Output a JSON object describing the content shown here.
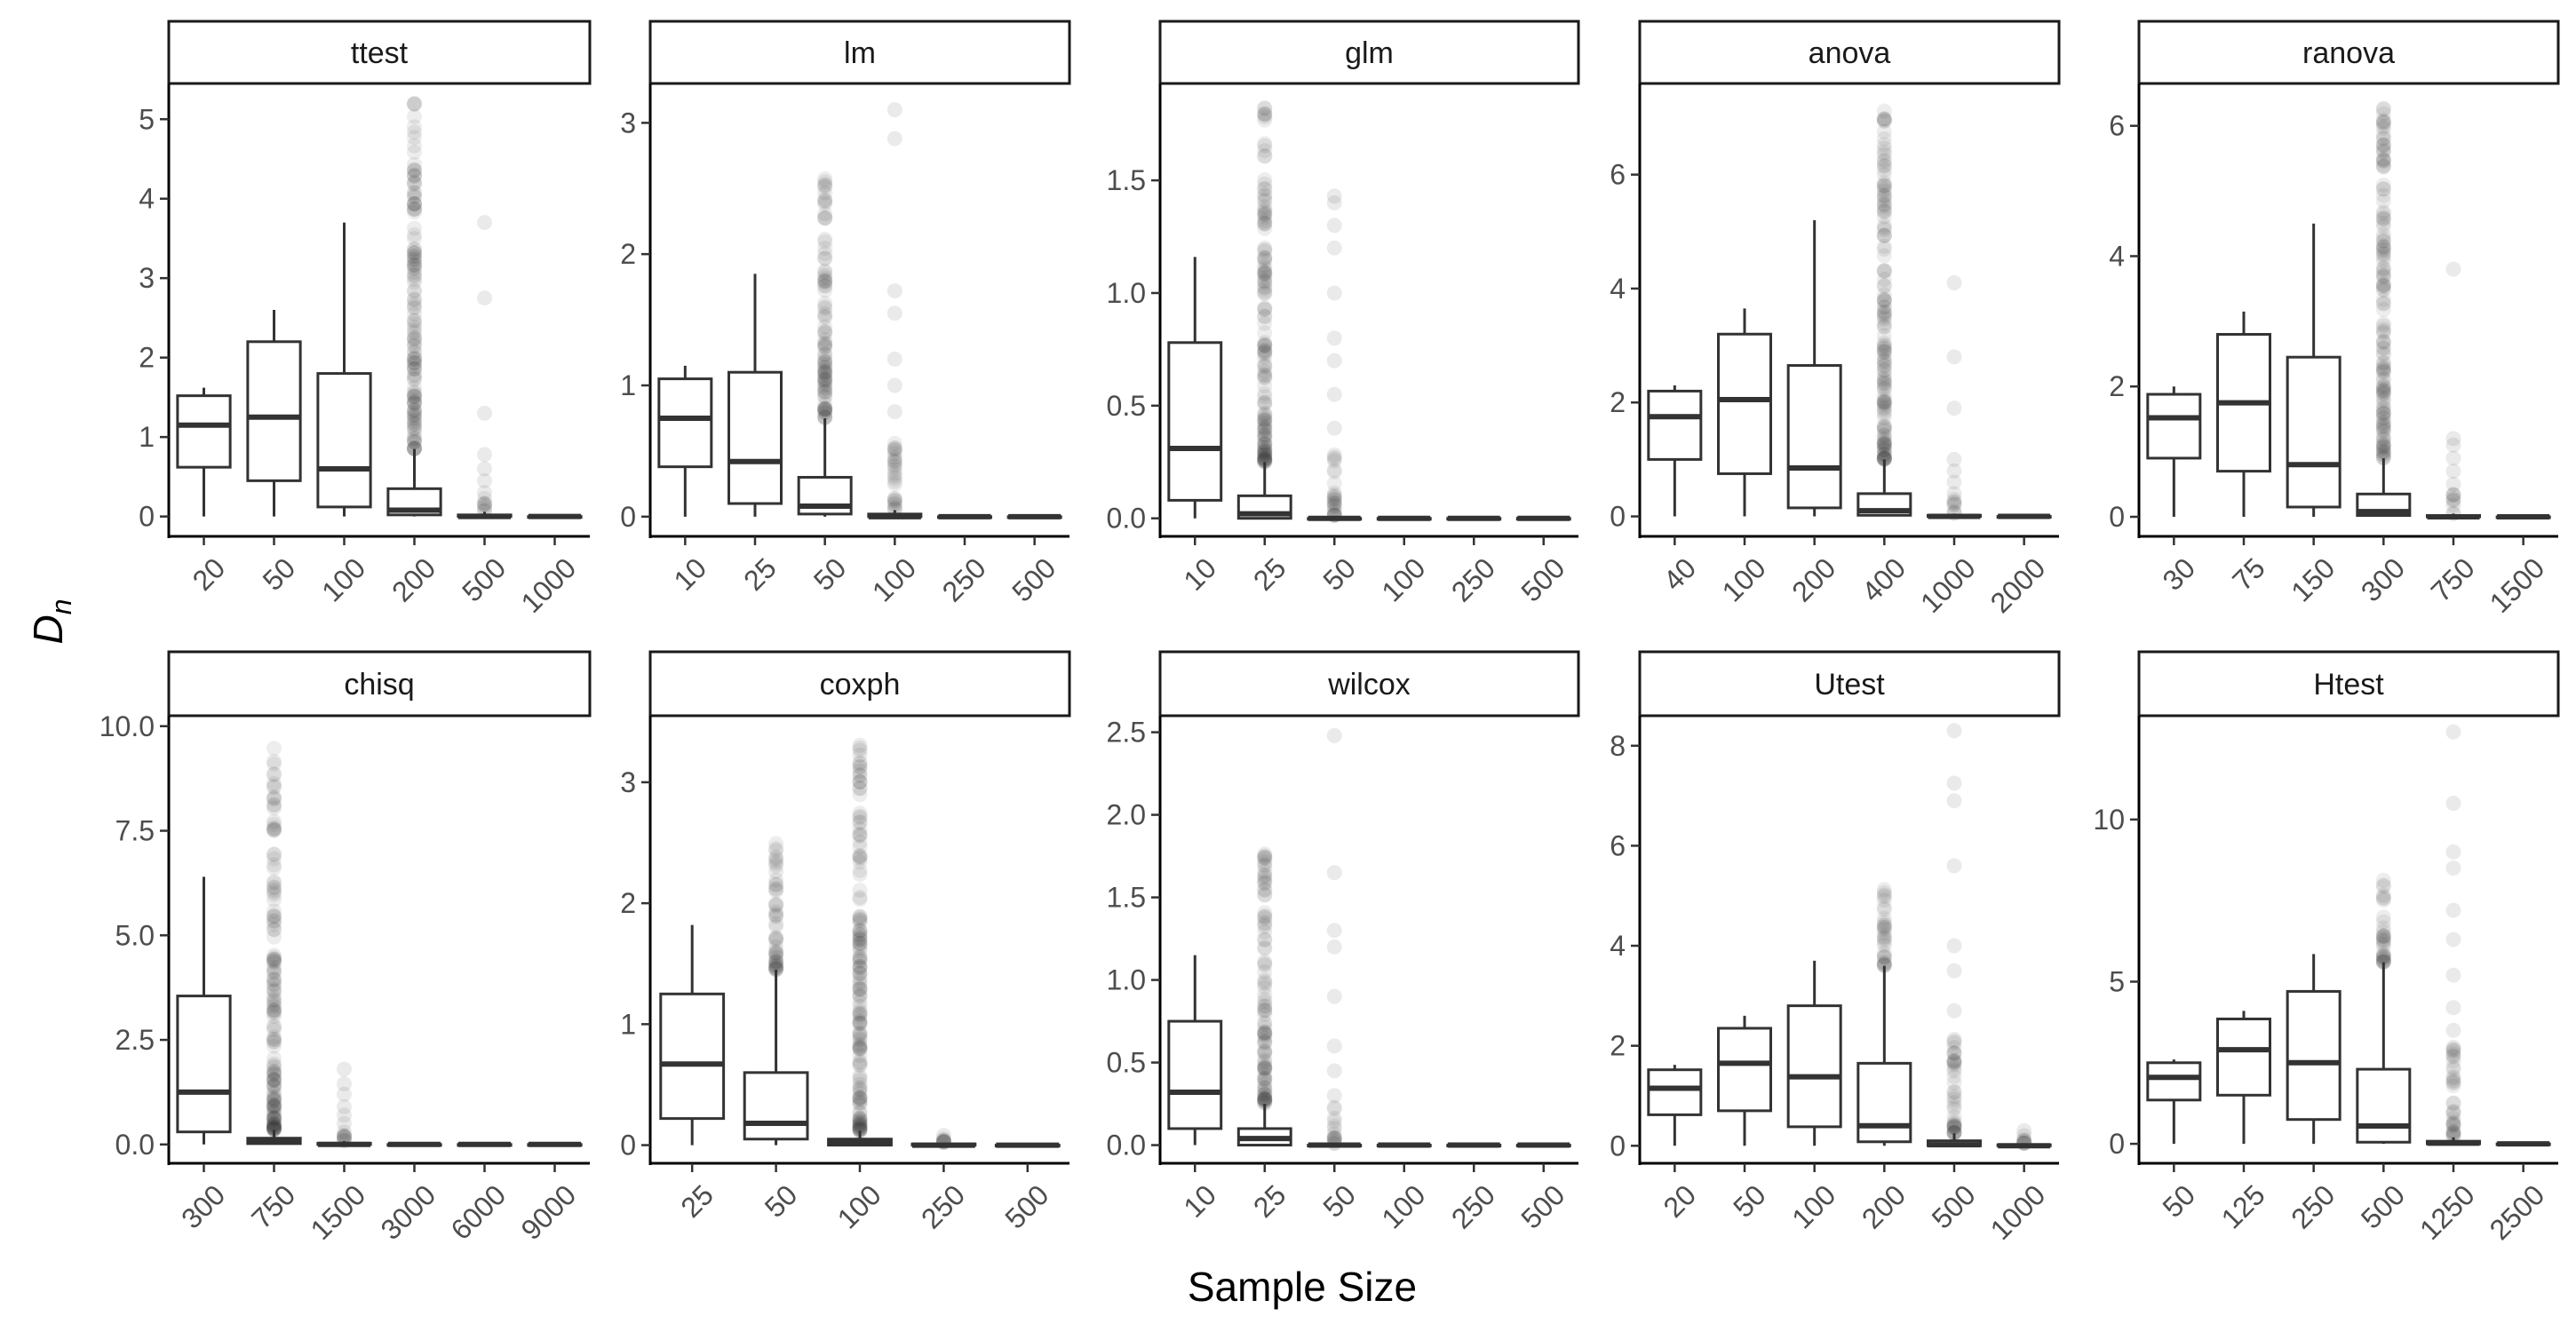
{
  "chart_data": {
    "type": "box",
    "layout": "facet grid, 2 rows x 5 columns, free scales",
    "xlabel": "Sample Size",
    "ylabel": "D",
    "ylabel_subscript": "n",
    "colors": {
      "box": "#333333",
      "outlier": "#333333",
      "axis": "#000000",
      "strip_fill": "#ffffff"
    },
    "panels": [
      {
        "title": "ttest",
        "categories": [
          "20",
          "50",
          "100",
          "200",
          "500",
          "1000"
        ],
        "ylim": [
          -0.25,
          5.45
        ],
        "yticks": [
          0,
          1,
          2,
          3,
          4,
          5
        ],
        "ytick_labels": [
          "0",
          "1",
          "2",
          "3",
          "4",
          "5"
        ],
        "boxes": [
          {
            "q1": 0.62,
            "median": 1.15,
            "q3": 1.52,
            "lower": 0.0,
            "upper": 1.62,
            "outliers": []
          },
          {
            "q1": 0.45,
            "median": 1.25,
            "q3": 2.2,
            "lower": 0.0,
            "upper": 2.6,
            "outliers": []
          },
          {
            "q1": 0.12,
            "median": 0.6,
            "q3": 1.8,
            "lower": 0.0,
            "upper": 3.7,
            "outliers": []
          },
          {
            "q1": 0.02,
            "median": 0.08,
            "q3": 0.35,
            "lower": 0.0,
            "upper": 0.85,
            "outliers": [],
            "outlier_range": [
              0.85,
              5.22
            ]
          },
          {
            "q1": 0.0,
            "median": 0.0,
            "q3": 0.02,
            "lower": 0.0,
            "upper": 0.06,
            "outliers": [
              0.3,
              0.45,
              0.6,
              0.78,
              1.3,
              2.75,
              3.7
            ],
            "outlier_range": [
              0.06,
              0.25
            ]
          },
          {
            "q1": 0.0,
            "median": 0.0,
            "q3": 0.0,
            "lower": 0.0,
            "upper": 0.01,
            "outliers": []
          }
        ]
      },
      {
        "title": "lm",
        "categories": [
          "10",
          "25",
          "50",
          "100",
          "250",
          "500"
        ],
        "ylim": [
          -0.15,
          3.3
        ],
        "yticks": [
          0,
          1,
          2,
          3
        ],
        "ytick_labels": [
          "0",
          "1",
          "2",
          "3"
        ],
        "boxes": [
          {
            "q1": 0.38,
            "median": 0.75,
            "q3": 1.05,
            "lower": 0.0,
            "upper": 1.15,
            "outliers": []
          },
          {
            "q1": 0.1,
            "median": 0.42,
            "q3": 1.1,
            "lower": 0.0,
            "upper": 1.85,
            "outliers": []
          },
          {
            "q1": 0.02,
            "median": 0.08,
            "q3": 0.3,
            "lower": 0.0,
            "upper": 0.75,
            "outliers": [],
            "outlier_range": [
              0.75,
              2.6
            ]
          },
          {
            "q1": 0.0,
            "median": 0.0,
            "q3": 0.02,
            "lower": 0.0,
            "upper": 0.05,
            "outliers": [
              0.8,
              1.0,
              1.2,
              1.55,
              1.72,
              2.88,
              3.1
            ],
            "outlier_range": [
              0.05,
              0.6
            ]
          },
          {
            "q1": 0.0,
            "median": 0.0,
            "q3": 0.0,
            "lower": 0.0,
            "upper": 0.01,
            "outliers": []
          },
          {
            "q1": 0.0,
            "median": 0.0,
            "q3": 0.0,
            "lower": 0.0,
            "upper": 0.01,
            "outliers": []
          }
        ]
      },
      {
        "title": "glm",
        "categories": [
          "10",
          "25",
          "50",
          "100",
          "250",
          "500"
        ],
        "ylim": [
          -0.08,
          1.93
        ],
        "yticks": [
          0,
          0.5,
          1.0,
          1.5
        ],
        "ytick_labels": [
          "0.0",
          "0.5",
          "1.0",
          "1.5"
        ],
        "boxes": [
          {
            "q1": 0.08,
            "median": 0.31,
            "q3": 0.78,
            "lower": 0.0,
            "upper": 1.16,
            "outliers": []
          },
          {
            "q1": 0.0,
            "median": 0.02,
            "q3": 0.1,
            "lower": 0.0,
            "upper": 0.25,
            "outliers": [],
            "outlier_range": [
              0.25,
              1.84
            ]
          },
          {
            "q1": 0.0,
            "median": 0.0,
            "q3": 0.0,
            "lower": 0.0,
            "upper": 0.01,
            "outliers": [
              0.4,
              0.55,
              0.7,
              0.8,
              1.0,
              1.2,
              1.3,
              1.4,
              1.43
            ],
            "outlier_range": [
              0.01,
              0.3
            ]
          },
          {
            "q1": 0.0,
            "median": 0.0,
            "q3": 0.0,
            "lower": 0.0,
            "upper": 0.01,
            "outliers": []
          },
          {
            "q1": 0.0,
            "median": 0.0,
            "q3": 0.0,
            "lower": 0.0,
            "upper": 0.01,
            "outliers": []
          },
          {
            "q1": 0.0,
            "median": 0.0,
            "q3": 0.0,
            "lower": 0.0,
            "upper": 0.01,
            "outliers": []
          }
        ]
      },
      {
        "title": "anova",
        "categories": [
          "40",
          "100",
          "200",
          "400",
          "1000",
          "2000"
        ],
        "ylim": [
          -0.35,
          7.6
        ],
        "yticks": [
          0,
          2,
          4,
          6
        ],
        "ytick_labels": [
          "0",
          "2",
          "4",
          "6"
        ],
        "boxes": [
          {
            "q1": 1.0,
            "median": 1.75,
            "q3": 2.2,
            "lower": 0.0,
            "upper": 2.3,
            "outliers": []
          },
          {
            "q1": 0.75,
            "median": 2.05,
            "q3": 3.2,
            "lower": 0.0,
            "upper": 3.65,
            "outliers": []
          },
          {
            "q1": 0.15,
            "median": 0.85,
            "q3": 2.65,
            "lower": 0.0,
            "upper": 5.2,
            "outliers": []
          },
          {
            "q1": 0.02,
            "median": 0.1,
            "q3": 0.4,
            "lower": 0.0,
            "upper": 1.0,
            "outliers": [],
            "outlier_range": [
              1.0,
              7.35
            ]
          },
          {
            "q1": 0.0,
            "median": 0.0,
            "q3": 0.02,
            "lower": 0.0,
            "upper": 0.05,
            "outliers": [
              0.4,
              0.6,
              0.8,
              1.0,
              1.9,
              2.8,
              4.1
            ],
            "outlier_range": [
              0.05,
              0.3
            ]
          },
          {
            "q1": 0.0,
            "median": 0.0,
            "q3": 0.0,
            "lower": 0.0,
            "upper": 0.01,
            "outliers": []
          }
        ]
      },
      {
        "title": "ranova",
        "categories": [
          "30",
          "75",
          "150",
          "300",
          "750",
          "1500"
        ],
        "ylim": [
          -0.3,
          6.65
        ],
        "yticks": [
          0,
          2,
          4,
          6
        ],
        "ytick_labels": [
          "0",
          "2",
          "4",
          "6"
        ],
        "boxes": [
          {
            "q1": 0.9,
            "median": 1.52,
            "q3": 1.88,
            "lower": 0.0,
            "upper": 2.0,
            "outliers": []
          },
          {
            "q1": 0.7,
            "median": 1.75,
            "q3": 2.8,
            "lower": 0.0,
            "upper": 3.15,
            "outliers": []
          },
          {
            "q1": 0.15,
            "median": 0.8,
            "q3": 2.45,
            "lower": 0.0,
            "upper": 4.5,
            "outliers": []
          },
          {
            "q1": 0.02,
            "median": 0.08,
            "q3": 0.35,
            "lower": 0.0,
            "upper": 0.9,
            "outliers": [],
            "outlier_range": [
              0.9,
              6.35
            ]
          },
          {
            "q1": 0.0,
            "median": 0.0,
            "q3": 0.02,
            "lower": 0.0,
            "upper": 0.05,
            "outliers": [
              0.5,
              0.7,
              0.9,
              1.1,
              1.2,
              3.8
            ],
            "outlier_range": [
              0.05,
              0.4
            ]
          },
          {
            "q1": 0.0,
            "median": 0.0,
            "q3": 0.0,
            "lower": 0.0,
            "upper": 0.01,
            "outliers": []
          }
        ]
      },
      {
        "title": "chisq",
        "categories": [
          "300",
          "750",
          "1500",
          "3000",
          "6000",
          "9000"
        ],
        "ylim": [
          -0.45,
          10.25
        ],
        "yticks": [
          0,
          2.5,
          5.0,
          7.5,
          10.0
        ],
        "ytick_labels": [
          "0.0",
          "2.5",
          "5.0",
          "7.5",
          "10.0"
        ],
        "boxes": [
          {
            "q1": 0.3,
            "median": 1.25,
            "q3": 3.55,
            "lower": 0.0,
            "upper": 6.4,
            "outliers": []
          },
          {
            "q1": 0.02,
            "median": 0.08,
            "q3": 0.15,
            "lower": 0.0,
            "upper": 0.35,
            "outliers": [],
            "outlier_range": [
              0.35,
              9.8
            ]
          },
          {
            "q1": 0.0,
            "median": 0.0,
            "q3": 0.03,
            "lower": 0.0,
            "upper": 0.08,
            "outliers": [
              0.3,
              0.5,
              0.7,
              0.9,
              1.2,
              1.45,
              1.8
            ],
            "outlier_range": [
              0.08,
              0.3
            ]
          },
          {
            "q1": 0.0,
            "median": 0.0,
            "q3": 0.0,
            "lower": 0.0,
            "upper": 0.01,
            "outliers": []
          },
          {
            "q1": 0.0,
            "median": 0.0,
            "q3": 0.0,
            "lower": 0.0,
            "upper": 0.01,
            "outliers": []
          },
          {
            "q1": 0.0,
            "median": 0.0,
            "q3": 0.0,
            "lower": 0.0,
            "upper": 0.01,
            "outliers": []
          }
        ]
      },
      {
        "title": "coxph",
        "categories": [
          "25",
          "50",
          "100",
          "250",
          "500"
        ],
        "ylim": [
          -0.15,
          3.55
        ],
        "yticks": [
          0,
          1,
          2,
          3
        ],
        "ytick_labels": [
          "0",
          "1",
          "2",
          "3"
        ],
        "boxes": [
          {
            "q1": 0.22,
            "median": 0.67,
            "q3": 1.25,
            "lower": 0.0,
            "upper": 1.82,
            "outliers": []
          },
          {
            "q1": 0.05,
            "median": 0.18,
            "q3": 0.6,
            "lower": 0.0,
            "upper": 1.45,
            "outliers": [],
            "outlier_range": [
              1.45,
              2.5
            ]
          },
          {
            "q1": 0.0,
            "median": 0.02,
            "q3": 0.05,
            "lower": 0.0,
            "upper": 0.12,
            "outliers": [],
            "outlier_range": [
              0.12,
              3.45
            ]
          },
          {
            "q1": 0.0,
            "median": 0.0,
            "q3": 0.01,
            "lower": 0.0,
            "upper": 0.02,
            "outliers": [
              0.05,
              0.08
            ],
            "outlier_range": [
              0.02,
              0.04
            ]
          },
          {
            "q1": 0.0,
            "median": 0.0,
            "q3": 0.0,
            "lower": 0.0,
            "upper": 0.01,
            "outliers": []
          }
        ]
      },
      {
        "title": "wilcox",
        "categories": [
          "10",
          "25",
          "50",
          "100",
          "250",
          "500"
        ],
        "ylim": [
          -0.11,
          2.6
        ],
        "yticks": [
          0,
          0.5,
          1.0,
          1.5,
          2.0,
          2.5
        ],
        "ytick_labels": [
          "0.0",
          "0.5",
          "1.0",
          "1.5",
          "2.0",
          "2.5"
        ],
        "boxes": [
          {
            "q1": 0.1,
            "median": 0.32,
            "q3": 0.75,
            "lower": 0.0,
            "upper": 1.15,
            "outliers": []
          },
          {
            "q1": 0.0,
            "median": 0.04,
            "q3": 0.1,
            "lower": 0.0,
            "upper": 0.25,
            "outliers": [],
            "outlier_range": [
              0.25,
              1.84
            ]
          },
          {
            "q1": 0.0,
            "median": 0.0,
            "q3": 0.0,
            "lower": 0.0,
            "upper": 0.01,
            "outliers": [
              0.3,
              0.45,
              0.6,
              0.9,
              1.2,
              1.3,
              1.65,
              2.48
            ],
            "outlier_range": [
              0.01,
              0.25
            ]
          },
          {
            "q1": 0.0,
            "median": 0.0,
            "q3": 0.0,
            "lower": 0.0,
            "upper": 0.01,
            "outliers": []
          },
          {
            "q1": 0.0,
            "median": 0.0,
            "q3": 0.0,
            "lower": 0.0,
            "upper": 0.01,
            "outliers": []
          },
          {
            "q1": 0.0,
            "median": 0.0,
            "q3": 0.0,
            "lower": 0.0,
            "upper": 0.01,
            "outliers": []
          }
        ]
      },
      {
        "title": "Utest",
        "categories": [
          "20",
          "50",
          "100",
          "200",
          "500",
          "1000"
        ],
        "ylim": [
          -0.35,
          8.6
        ],
        "yticks": [
          0,
          2,
          4,
          6,
          8
        ],
        "ytick_labels": [
          "0",
          "2",
          "4",
          "6",
          "8"
        ],
        "boxes": [
          {
            "q1": 0.62,
            "median": 1.15,
            "q3": 1.52,
            "lower": 0.0,
            "upper": 1.62,
            "outliers": []
          },
          {
            "q1": 0.7,
            "median": 1.65,
            "q3": 2.35,
            "lower": 0.0,
            "upper": 2.6,
            "outliers": []
          },
          {
            "q1": 0.38,
            "median": 1.38,
            "q3": 2.8,
            "lower": 0.0,
            "upper": 3.7,
            "outliers": []
          },
          {
            "q1": 0.08,
            "median": 0.4,
            "q3": 1.65,
            "lower": 0.0,
            "upper": 3.6,
            "outliers": [],
            "outlier_range": [
              3.6,
              5.2
            ]
          },
          {
            "q1": 0.0,
            "median": 0.02,
            "q3": 0.1,
            "lower": 0.0,
            "upper": 0.25,
            "outliers": [
              2.7,
              3.5,
              4.0,
              5.6,
              6.9,
              7.25,
              8.3
            ],
            "outlier_range": [
              0.25,
              2.4
            ]
          },
          {
            "q1": 0.0,
            "median": 0.0,
            "q3": 0.02,
            "lower": 0.0,
            "upper": 0.05,
            "outliers": [
              0.2,
              0.3
            ],
            "outlier_range": [
              0.05,
              0.15
            ]
          }
        ]
      },
      {
        "title": "Htest",
        "categories": [
          "50",
          "125",
          "250",
          "500",
          "1250",
          "2500"
        ],
        "ylim": [
          -0.6,
          13.2
        ],
        "yticks": [
          0,
          5,
          10
        ],
        "ytick_labels": [
          "0",
          "5",
          "10"
        ],
        "boxes": [
          {
            "q1": 1.35,
            "median": 2.05,
            "q3": 2.5,
            "lower": 0.0,
            "upper": 2.6,
            "outliers": []
          },
          {
            "q1": 1.5,
            "median": 2.9,
            "q3": 3.85,
            "lower": 0.0,
            "upper": 4.1,
            "outliers": []
          },
          {
            "q1": 0.75,
            "median": 2.5,
            "q3": 4.7,
            "lower": 0.0,
            "upper": 5.85,
            "outliers": []
          },
          {
            "q1": 0.05,
            "median": 0.55,
            "q3": 2.3,
            "lower": 0.0,
            "upper": 5.6,
            "outliers": [],
            "outlier_range": [
              5.6,
              8.2
            ]
          },
          {
            "q1": 0.0,
            "median": 0.02,
            "q3": 0.08,
            "lower": 0.0,
            "upper": 0.2,
            "outliers": [
              3.5,
              4.2,
              5.2,
              6.3,
              7.2,
              8.5,
              9.0,
              10.5,
              12.7
            ],
            "outlier_range": [
              0.2,
              3.0
            ]
          },
          {
            "q1": 0.0,
            "median": 0.0,
            "q3": 0.0,
            "lower": 0.0,
            "upper": 0.01,
            "outliers": []
          }
        ]
      }
    ]
  }
}
